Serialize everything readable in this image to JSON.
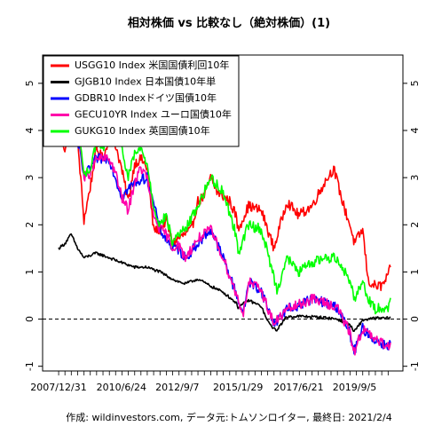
{
  "chart_data": {
    "type": "line",
    "title": "相対株価 vs 比較なし（絶対株価）(1)",
    "xlabel": "",
    "ylabel": "",
    "x_tick_labels": [
      "2007/12/31",
      "2010/6/24",
      "2012/9/7",
      "2015/1/29",
      "2017/6/21",
      "2019/9/5"
    ],
    "x_range": [
      "2007-12-31",
      "2021-02-04"
    ],
    "ylim": [
      -1.1,
      5.6
    ],
    "y_ticks": [
      -1,
      0,
      1,
      2,
      3,
      4,
      5
    ],
    "y_tick_labels": [
      "-1",
      "0",
      "1",
      "2",
      "3",
      "4",
      "5"
    ],
    "reference_line": {
      "y": 0,
      "style": "dashed"
    },
    "grid": false,
    "legend_position": "top-left",
    "series": [
      {
        "name": "USGG10 Index 米国国債利回10年",
        "color": "#ff0000",
        "x": [
          "2007-12-31",
          "2008-03-31",
          "2008-06-30",
          "2008-09-30",
          "2008-12-31",
          "2009-03-31",
          "2009-06-30",
          "2009-09-30",
          "2009-12-31",
          "2010-03-31",
          "2010-06-24",
          "2010-09-30",
          "2010-12-31",
          "2011-03-31",
          "2011-06-30",
          "2011-09-30",
          "2011-12-31",
          "2012-03-31",
          "2012-06-30",
          "2012-09-07",
          "2012-12-31",
          "2013-03-31",
          "2013-06-30",
          "2013-09-30",
          "2013-12-31",
          "2014-03-31",
          "2014-06-30",
          "2014-09-30",
          "2014-12-31",
          "2015-01-29",
          "2015-06-30",
          "2015-12-31",
          "2016-06-30",
          "2016-12-31",
          "2017-06-21",
          "2017-12-31",
          "2018-06-30",
          "2018-11-08",
          "2019-03-31",
          "2019-06-30",
          "2019-09-05",
          "2019-12-31",
          "2020-03-20",
          "2020-06-30",
          "2020-09-30",
          "2020-12-31",
          "2021-02-04"
        ],
        "values": [
          4.1,
          3.6,
          4.0,
          3.8,
          2.1,
          2.8,
          3.6,
          3.4,
          3.8,
          3.7,
          3.2,
          2.5,
          3.3,
          3.4,
          3.2,
          1.9,
          1.9,
          2.1,
          1.6,
          1.7,
          1.8,
          1.9,
          2.5,
          2.6,
          3.0,
          2.7,
          2.6,
          2.5,
          2.2,
          1.9,
          2.4,
          2.3,
          1.5,
          2.5,
          2.2,
          2.4,
          2.9,
          3.2,
          2.4,
          2.0,
          1.6,
          1.9,
          0.8,
          0.7,
          0.7,
          0.9,
          1.1
        ]
      },
      {
        "name": "GJGB10 Index 日本国債10年単",
        "color": "#000000",
        "x": [
          "2007-12-31",
          "2008-03-31",
          "2008-06-30",
          "2008-09-30",
          "2008-12-31",
          "2009-06-30",
          "2009-12-31",
          "2010-06-24",
          "2010-12-31",
          "2011-06-30",
          "2011-12-31",
          "2012-06-30",
          "2012-09-07",
          "2012-12-31",
          "2013-06-30",
          "2013-12-31",
          "2014-06-30",
          "2014-12-31",
          "2015-01-29",
          "2015-06-30",
          "2015-12-31",
          "2016-03-31",
          "2016-07-29",
          "2016-12-31",
          "2017-06-21",
          "2017-12-31",
          "2018-06-30",
          "2018-12-31",
          "2019-06-30",
          "2019-08-30",
          "2019-12-31",
          "2020-06-30",
          "2020-12-31",
          "2021-02-04"
        ],
        "values": [
          1.5,
          1.6,
          1.8,
          1.5,
          1.3,
          1.4,
          1.3,
          1.2,
          1.1,
          1.1,
          1.0,
          0.85,
          0.8,
          0.75,
          0.85,
          0.7,
          0.57,
          0.35,
          0.25,
          0.4,
          0.27,
          -0.05,
          -0.25,
          0.05,
          0.06,
          0.05,
          0.03,
          0.0,
          -0.12,
          -0.27,
          -0.02,
          0.02,
          0.02,
          0.05
        ]
      },
      {
        "name": "GDBR10 Indexドイツ国債10年",
        "color": "#0000ff",
        "x": [
          "2007-12-31",
          "2008-06-30",
          "2008-12-31",
          "2009-06-30",
          "2009-12-31",
          "2010-06-24",
          "2010-12-31",
          "2011-06-30",
          "2011-12-31",
          "2012-06-30",
          "2012-09-07",
          "2012-12-31",
          "2013-06-30",
          "2013-12-31",
          "2014-06-30",
          "2014-12-31",
          "2015-04-17",
          "2015-06-30",
          "2015-12-31",
          "2016-06-30",
          "2016-12-31",
          "2017-06-21",
          "2017-12-31",
          "2018-06-30",
          "2018-12-31",
          "2019-06-30",
          "2019-08-30",
          "2019-12-31",
          "2020-06-30",
          "2020-12-31",
          "2021-02-04"
        ],
        "values": [
          4.3,
          4.6,
          3.0,
          3.4,
          3.4,
          2.6,
          2.9,
          3.0,
          1.9,
          1.5,
          1.5,
          1.3,
          1.6,
          1.9,
          1.3,
          0.55,
          0.1,
          0.8,
          0.6,
          -0.1,
          0.2,
          0.3,
          0.43,
          0.35,
          0.25,
          -0.3,
          -0.7,
          -0.2,
          -0.45,
          -0.57,
          -0.5
        ]
      },
      {
        "name": "GECU10YR Index ユーロ国債10年",
        "color": "#ff00aa",
        "x": [
          "2007-12-31",
          "2008-03-31",
          "2008-06-30",
          "2008-09-30",
          "2008-12-31",
          "2009-03-31",
          "2009-06-30",
          "2009-12-31",
          "2010-03-31",
          "2010-06-24",
          "2010-09-30",
          "2010-12-31",
          "2011-03-31",
          "2011-06-30",
          "2011-09-30",
          "2011-12-31",
          "2012-03-31",
          "2012-06-30",
          "2012-09-07",
          "2012-12-31",
          "2013-06-30",
          "2013-12-31",
          "2014-06-30",
          "2014-12-31",
          "2015-04-17",
          "2015-06-30",
          "2015-12-31",
          "2016-06-30",
          "2016-12-31",
          "2017-06-21",
          "2017-12-31",
          "2018-06-30",
          "2018-12-31",
          "2019-06-30",
          "2019-08-30",
          "2019-12-31",
          "2020-06-30",
          "2020-12-31",
          "2021-02-04"
        ],
        "values": [
          4.3,
          4.0,
          4.6,
          4.2,
          3.0,
          3.1,
          3.4,
          3.4,
          3.1,
          2.6,
          2.3,
          2.9,
          3.2,
          3.0,
          2.2,
          1.9,
          1.8,
          1.5,
          1.6,
          1.3,
          1.7,
          1.9,
          1.3,
          0.55,
          0.1,
          0.8,
          0.6,
          -0.1,
          0.2,
          0.3,
          0.43,
          0.35,
          0.25,
          -0.3,
          -0.7,
          -0.2,
          -0.45,
          -0.57,
          -0.5
        ]
      },
      {
        "name": "GUKG10 Index 英国国債10年",
        "color": "#00ff00",
        "x": [
          "2007-12-31",
          "2008-03-31",
          "2008-06-30",
          "2008-09-30",
          "2008-12-31",
          "2009-03-31",
          "2009-06-30",
          "2009-09-30",
          "2009-12-31",
          "2010-03-31",
          "2010-06-24",
          "2010-09-30",
          "2010-12-31",
          "2011-03-31",
          "2011-06-30",
          "2011-09-30",
          "2011-12-31",
          "2012-03-31",
          "2012-06-30",
          "2012-09-07",
          "2012-12-31",
          "2013-06-30",
          "2013-12-31",
          "2014-06-30",
          "2014-12-31",
          "2015-01-29",
          "2015-06-30",
          "2015-12-31",
          "2016-06-30",
          "2016-08-12",
          "2016-12-31",
          "2017-06-21",
          "2017-12-31",
          "2018-06-30",
          "2018-12-31",
          "2019-06-30",
          "2019-09-05",
          "2019-12-31",
          "2020-03-31",
          "2020-06-30",
          "2020-09-30",
          "2020-12-31",
          "2021-02-04"
        ],
        "values": [
          4.6,
          4.3,
          5.2,
          4.5,
          3.0,
          3.2,
          3.8,
          3.6,
          4.0,
          4.0,
          3.6,
          3.0,
          3.5,
          3.6,
          3.3,
          2.4,
          2.0,
          2.2,
          1.6,
          1.8,
          1.9,
          2.4,
          3.0,
          2.7,
          1.8,
          1.4,
          2.0,
          1.9,
          0.9,
          0.6,
          1.3,
          1.0,
          1.2,
          1.3,
          1.3,
          0.8,
          0.45,
          0.8,
          0.4,
          0.2,
          0.25,
          0.25,
          0.45
        ]
      }
    ],
    "credit": "作成: wildinvestors.com, データ元:トムソンロイター, 最終日: 2021/2/4"
  }
}
